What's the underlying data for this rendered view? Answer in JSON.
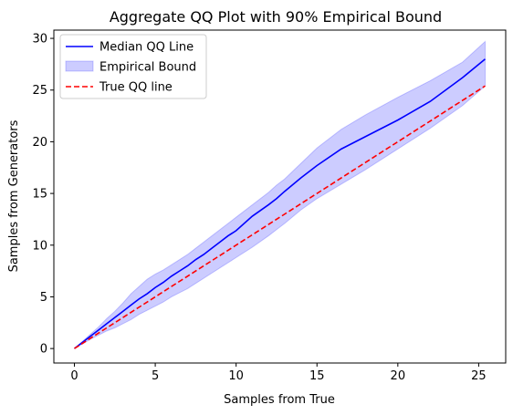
{
  "chart_data": {
    "type": "line",
    "title": "Aggregate QQ Plot with  90% Empirical Bound",
    "xlabel": "Samples from True",
    "ylabel": "Samples from Generators",
    "xlim": [
      -1.27,
      26.67
    ],
    "ylim": [
      -1.4,
      30.8
    ],
    "x_ticks": [
      0,
      5,
      10,
      15,
      20,
      25
    ],
    "y_ticks": [
      0,
      5,
      10,
      15,
      20,
      25,
      30
    ],
    "grid": false,
    "legend_position": "top-left",
    "series": [
      {
        "name": "Median QQ Line",
        "kind": "line",
        "color": "#0000ff",
        "x": [
          0,
          0.5,
          1,
          1.5,
          2,
          2.5,
          3,
          3.5,
          4,
          4.5,
          5,
          5.5,
          6,
          6.5,
          7,
          7.5,
          8,
          8.5,
          9,
          9.5,
          10,
          11,
          12,
          12.5,
          13,
          14,
          15,
          16.5,
          18,
          20,
          22,
          24,
          25.4
        ],
        "y": [
          0,
          0.6,
          1.2,
          1.8,
          2.4,
          3.0,
          3.6,
          4.2,
          4.8,
          5.3,
          5.9,
          6.4,
          7.0,
          7.5,
          8.0,
          8.6,
          9.1,
          9.7,
          10.3,
          10.9,
          11.4,
          12.8,
          13.9,
          14.5,
          15.2,
          16.5,
          17.7,
          19.3,
          20.5,
          22.1,
          23.9,
          26.2,
          28.0
        ]
      },
      {
        "name": "Empirical Bound",
        "kind": "band",
        "color": "#0000ff",
        "opacity": 0.2,
        "x": [
          0,
          0.5,
          1,
          1.5,
          2,
          2.5,
          3,
          3.5,
          4,
          4.5,
          5,
          5.5,
          6,
          6.5,
          7,
          7.5,
          8,
          8.5,
          9,
          9.5,
          10,
          11,
          12,
          12.5,
          13,
          14,
          15,
          16.5,
          18,
          20,
          22,
          24,
          25.4
        ],
        "lower": [
          0,
          0.45,
          0.9,
          1.3,
          1.7,
          2.0,
          2.4,
          2.8,
          3.3,
          3.7,
          4.1,
          4.5,
          5.0,
          5.4,
          5.8,
          6.3,
          6.8,
          7.3,
          7.8,
          8.3,
          8.8,
          9.8,
          10.9,
          11.5,
          12.1,
          13.4,
          14.5,
          15.9,
          17.3,
          19.3,
          21.3,
          23.5,
          25.4
        ],
        "upper": [
          0,
          0.7,
          1.4,
          2.1,
          2.9,
          3.6,
          4.4,
          5.3,
          6.0,
          6.7,
          7.2,
          7.6,
          8.1,
          8.6,
          9.1,
          9.7,
          10.3,
          10.9,
          11.5,
          12.1,
          12.7,
          13.9,
          15.1,
          15.8,
          16.4,
          17.9,
          19.4,
          21.2,
          22.6,
          24.3,
          25.9,
          27.7,
          29.7
        ]
      },
      {
        "name": "True QQ line",
        "kind": "dashed-line",
        "color": "#ff0000",
        "x": [
          0,
          25.4
        ],
        "y": [
          0,
          25.4
        ]
      }
    ]
  }
}
